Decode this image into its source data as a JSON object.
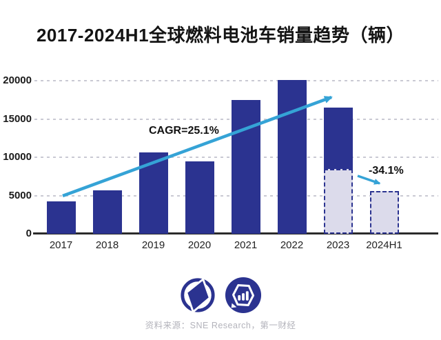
{
  "chart_data": {
    "type": "bar",
    "title": "2017-2024H1全球燃料电池车销量趋势（辆）",
    "categories": [
      "2017",
      "2018",
      "2019",
      "2020",
      "2021",
      "2022",
      "2023",
      "2024H1"
    ],
    "values": [
      4200,
      5700,
      10600,
      9500,
      17500,
      20100,
      16500,
      5600
    ],
    "bars": [
      {
        "category": "2017",
        "value": 4200,
        "style": "solid"
      },
      {
        "category": "2018",
        "value": 5700,
        "style": "solid"
      },
      {
        "category": "2019",
        "value": 10600,
        "style": "solid"
      },
      {
        "category": "2020",
        "value": 9500,
        "style": "solid"
      },
      {
        "category": "2021",
        "value": 17500,
        "style": "solid"
      },
      {
        "category": "2022",
        "value": 20100,
        "style": "solid"
      },
      {
        "category": "2023",
        "value": 16500,
        "style": "split",
        "dashed_to": 8500
      },
      {
        "category": "2024H1",
        "value": 5600,
        "style": "dashed"
      }
    ],
    "yticks": [
      0,
      5000,
      10000,
      15000,
      20000
    ],
    "ylim": [
      0,
      21000
    ],
    "grid": "horizontal-dashed",
    "legend": "none",
    "annotations": [
      {
        "text": "CAGR=25.1%",
        "type": "trend-up-arrow"
      },
      {
        "text": "-34.1%",
        "type": "trend-down-arrow"
      }
    ],
    "colors": {
      "bar_navy": "#2b3390",
      "dashed_fill": "#dcdbeb",
      "trend_blue": "#35a3d6",
      "grid_gray": "#c9c9d3",
      "axis_dark": "#2b2b2b"
    }
  },
  "footer": {
    "source": "资料来源：SNE Research，第一财经",
    "logos": [
      "yicai-circle-logo",
      "hexagon-bar-chart-logo"
    ]
  }
}
